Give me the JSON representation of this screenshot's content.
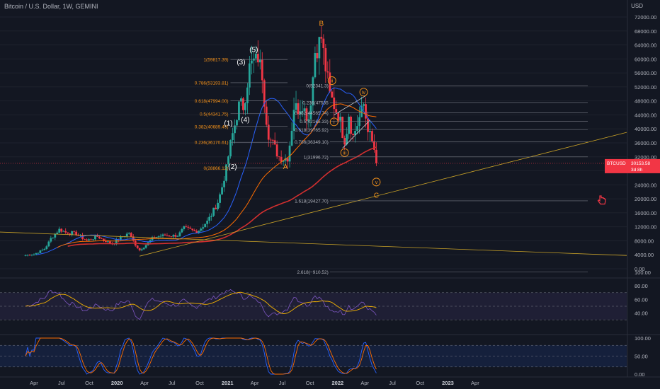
{
  "header": {
    "symbol_title": "Bitcoin / U.S. Dollar, 1W, GEMINI"
  },
  "currency_label": "USD",
  "price_badge": {
    "symbol": "BTCUSD",
    "price": "30153.58",
    "countdown": "3d 8h",
    "color": "#f23645"
  },
  "colors": {
    "background": "#131722",
    "up": "#26a69a",
    "down": "#f23645",
    "ma_blue": "#2962ff",
    "ma_orange": "#ff6d00",
    "ma_red": "#d32f2f",
    "fib": "#f7931a",
    "trendline": "#c9a227",
    "rsi": "#7e57c2",
    "stoch": "#2962ff"
  },
  "cursor_icon": "hand-pointer-icon",
  "chart_data": [
    {
      "type": "candlestick",
      "title": "Bitcoin / U.S. Dollar, 1W, GEMINI",
      "y_scale": "log",
      "yticks": [
        "72000.00",
        "68000.00",
        "64000.00",
        "60000.00",
        "56000.00",
        "52000.00",
        "48000.00",
        "44000.00",
        "40000.00",
        "36000.00",
        "32000.00",
        "28000.00",
        "24000.00",
        "20000.00",
        "16000.00",
        "12000.00",
        "8000.00",
        "4000.00",
        "0.00"
      ],
      "x_tick_labels": [
        "Apr",
        "Jul",
        "Oct",
        "2020",
        "Apr",
        "Jul",
        "Oct",
        "2021",
        "Apr",
        "Jul",
        "Oct",
        "2022",
        "Apr",
        "Jul",
        "Oct",
        "2023",
        "Apr"
      ],
      "weekly_close_anchors": [
        [
          "2019-03-04",
          3850
        ],
        [
          "2019-04-01",
          4150
        ],
        [
          "2019-05-06",
          5700
        ],
        [
          "2019-05-27",
          8700
        ],
        [
          "2019-06-24",
          11300
        ],
        [
          "2019-07-15",
          10400
        ],
        [
          "2019-08-12",
          10300
        ],
        [
          "2019-09-23",
          8100
        ],
        [
          "2019-10-28",
          9200
        ],
        [
          "2019-12-16",
          7100
        ],
        [
          "2020-01-13",
          8900
        ],
        [
          "2020-02-10",
          10300
        ],
        [
          "2020-03-16",
          5300
        ],
        [
          "2020-04-27",
          8800
        ],
        [
          "2020-06-01",
          9600
        ],
        [
          "2020-07-20",
          9400
        ],
        [
          "2020-08-10",
          11800
        ],
        [
          "2020-09-21",
          10500
        ],
        [
          "2020-10-26",
          13600
        ],
        [
          "2020-11-30",
          19000
        ],
        [
          "2020-12-28",
          29000
        ],
        [
          "2021-01-11",
          36000
        ],
        [
          "2021-02-08",
          47000
        ],
        [
          "2021-02-22",
          46000
        ],
        [
          "2021-03-15",
          58000
        ],
        [
          "2021-04-12",
          60000
        ],
        [
          "2021-04-26",
          55000
        ],
        [
          "2021-05-17",
          38000
        ],
        [
          "2021-06-21",
          32000
        ],
        [
          "2021-07-19",
          31500
        ],
        [
          "2021-08-09",
          46000
        ],
        [
          "2021-09-06",
          46500
        ],
        [
          "2021-09-27",
          43000
        ],
        [
          "2021-10-18",
          62000
        ],
        [
          "2021-11-08",
          66000
        ],
        [
          "2021-11-22",
          57000
        ],
        [
          "2021-12-06",
          50000
        ],
        [
          "2022-01-10",
          42500
        ],
        [
          "2022-01-24",
          36500
        ],
        [
          "2022-02-07",
          44000
        ],
        [
          "2022-02-21",
          38000
        ],
        [
          "2022-03-28",
          47000
        ],
        [
          "2022-04-11",
          40000
        ],
        [
          "2022-05-02",
          34000
        ],
        [
          "2022-05-09",
          30153.58
        ]
      ],
      "fib_levels": [
        {
          "label": "1(59817.39)",
          "price": 59817.39
        },
        {
          "label": "0.786(53193.81)",
          "price": 53193.81
        },
        {
          "label": "0.618(47994.00)",
          "price": 47994.0
        },
        {
          "label": "0.5(44341.75)",
          "price": 44341.75
        },
        {
          "label": "0.382(40689.49)",
          "price": 40689.49
        },
        {
          "label": "0.236(36170.61)",
          "price": 36170.61
        },
        {
          "label": "0(28866.12)",
          "price": 28866.12
        }
      ],
      "fib_levels_2": [
        {
          "label": "0(52341.3)",
          "price": 52341.3
        },
        {
          "label": "0.236(47535",
          "price": 47535
        },
        {
          "label": "0.382(44565.74)",
          "price": 44565.74
        },
        {
          "label": "0.5(42165.33)",
          "price": 42165.33
        },
        {
          "label": "0.618(39765.92)",
          "price": 39765.92
        },
        {
          "label": "0.786(36349.10)",
          "price": 36349.1
        },
        {
          "label": "1(31996.72)",
          "price": 31996.72
        },
        {
          "label": "1.618(19427.70)",
          "price": 19427.7
        },
        {
          "label": "2.618(−910.52)",
          "price": -910.52
        }
      ],
      "wave_labels": [
        {
          "text": "(1)",
          "date": "2021-01-04",
          "price": 41000,
          "color": "#ffffff"
        },
        {
          "text": "(2)",
          "date": "2021-01-18",
          "price": 28500,
          "color": "#ffffff",
          "below": true
        },
        {
          "text": "(3)",
          "date": "2021-02-15",
          "price": 58500,
          "color": "#ffffff"
        },
        {
          "text": "(4)",
          "date": "2021-03-01",
          "price": 42000,
          "color": "#ffffff"
        },
        {
          "text": "(5)",
          "date": "2021-03-29",
          "price": 62000,
          "color": "#ffffff"
        },
        {
          "text": "A",
          "date": "2021-07-12",
          "price": 28500,
          "color": "#f7931a",
          "below": true
        },
        {
          "text": "B",
          "date": "2021-11-08",
          "price": 69500,
          "color": "#f7931a"
        },
        {
          "text": "C",
          "date": "2022-05-09",
          "price": 20300,
          "color": "#f7931a",
          "below": true
        },
        {
          "text": "ii",
          "date": "2021-12-13",
          "price": 53800,
          "color": "#f7931a",
          "circle": true
        },
        {
          "text": "i",
          "date": "2021-12-20",
          "price": 42000,
          "color": "#f7931a",
          "circle": true
        },
        {
          "text": "iii",
          "date": "2022-01-24",
          "price": 33200,
          "color": "#f7931a",
          "circle": true
        },
        {
          "text": "iv",
          "date": "2022-03-28",
          "price": 50500,
          "color": "#f7931a",
          "circle": true
        },
        {
          "text": "v",
          "date": "2022-05-09",
          "price": 24800,
          "color": "#f7931a",
          "circle": true
        }
      ],
      "rsi": {
        "yticks": [
          "100.00",
          "80.00",
          "60.00",
          "40.00"
        ],
        "band": [
          30,
          70
        ]
      },
      "stochastic": {
        "yticks": [
          "100.00",
          "50.00",
          "0.00"
        ],
        "band": [
          20,
          80
        ]
      }
    }
  ]
}
